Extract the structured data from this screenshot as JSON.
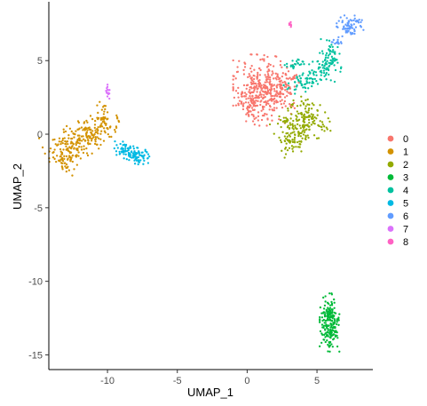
{
  "chart_data": {
    "type": "scatter",
    "title": "",
    "xlabel": "UMAP_1",
    "ylabel": "UMAP_2",
    "xlim": [
      -14.2,
      9.0
    ],
    "ylim": [
      -16.0,
      9.0
    ],
    "x_ticks": [
      -10,
      -5,
      0,
      5
    ],
    "y_ticks": [
      5,
      0,
      -5,
      -10,
      -15
    ],
    "x_tick_labels": [
      "-10",
      "-5",
      "0",
      "5"
    ],
    "y_tick_labels": [
      "5",
      "0",
      "-5",
      "-10",
      "-15"
    ],
    "grid": false,
    "legend": {
      "position": "right",
      "title": ""
    },
    "series": [
      {
        "name": "0",
        "color": "#F8766D",
        "clusters": [
          {
            "cx": 1.2,
            "cy": 3.0,
            "sx": 1.0,
            "sy": 1.1,
            "rot": 0,
            "n": 340
          },
          {
            "cx": 0.2,
            "cy": 2.2,
            "sx": 0.45,
            "sy": 0.6,
            "rot": 0,
            "n": 60
          },
          {
            "cx": 2.6,
            "cy": 3.6,
            "sx": 0.5,
            "sy": 0.5,
            "rot": 0,
            "n": 50
          }
        ]
      },
      {
        "name": "1",
        "color": "#D39200",
        "clusters": [
          {
            "cx": -11.8,
            "cy": -0.3,
            "sx": 1.3,
            "sy": 0.55,
            "rot": 22,
            "n": 220
          },
          {
            "cx": -12.9,
            "cy": -1.6,
            "sx": 0.4,
            "sy": 0.55,
            "rot": 0,
            "n": 60
          },
          {
            "cx": -10.3,
            "cy": 1.4,
            "sx": 0.2,
            "sy": 0.45,
            "rot": 0,
            "n": 25
          }
        ]
      },
      {
        "name": "2",
        "color": "#93AA00",
        "clusters": [
          {
            "cx": 3.8,
            "cy": 0.7,
            "sx": 0.9,
            "sy": 0.75,
            "rot": 25,
            "n": 200
          },
          {
            "cx": 3.0,
            "cy": -0.4,
            "sx": 0.4,
            "sy": 0.35,
            "rot": 0,
            "n": 30
          }
        ]
      },
      {
        "name": "3",
        "color": "#00BA38",
        "clusters": [
          {
            "cx": 5.9,
            "cy": -12.8,
            "sx": 0.32,
            "sy": 0.9,
            "rot": 0,
            "n": 200
          }
        ]
      },
      {
        "name": "4",
        "color": "#00C19F",
        "clusters": [
          {
            "cx": 5.9,
            "cy": 4.9,
            "sx": 0.4,
            "sy": 0.65,
            "rot": -10,
            "n": 90
          },
          {
            "cx": 4.2,
            "cy": 3.6,
            "sx": 0.8,
            "sy": 0.35,
            "rot": 20,
            "n": 70
          },
          {
            "cx": 3.6,
            "cy": 4.8,
            "sx": 0.5,
            "sy": 0.15,
            "rot": 0,
            "n": 25
          }
        ]
      },
      {
        "name": "5",
        "color": "#00B9E3",
        "clusters": [
          {
            "cx": -7.9,
            "cy": -1.4,
            "sx": 0.55,
            "sy": 0.28,
            "rot": -12,
            "n": 90
          },
          {
            "cx": -9.0,
            "cy": -1.0,
            "sx": 0.35,
            "sy": 0.25,
            "rot": 0,
            "n": 25
          }
        ]
      },
      {
        "name": "6",
        "color": "#619CFF",
        "clusters": [
          {
            "cx": 7.4,
            "cy": 7.3,
            "sx": 0.45,
            "sy": 0.35,
            "rot": 0,
            "n": 70
          },
          {
            "cx": 6.5,
            "cy": 6.4,
            "sx": 0.2,
            "sy": 0.25,
            "rot": 0,
            "n": 15
          }
        ]
      },
      {
        "name": "7",
        "color": "#DB72FB",
        "clusters": [
          {
            "cx": -10.0,
            "cy": 2.9,
            "sx": 0.08,
            "sy": 0.22,
            "rot": 0,
            "n": 16
          }
        ]
      },
      {
        "name": "8",
        "color": "#FF61C3",
        "clusters": [
          {
            "cx": 3.15,
            "cy": 7.45,
            "sx": 0.06,
            "sy": 0.1,
            "rot": 0,
            "n": 8
          }
        ]
      }
    ]
  }
}
